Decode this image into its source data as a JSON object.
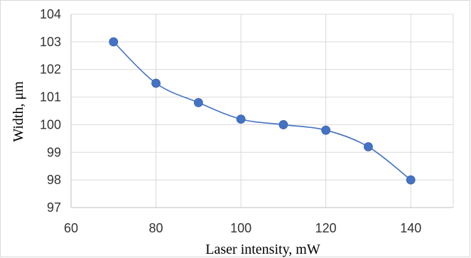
{
  "chart_data": {
    "type": "line",
    "xlabel": "Laser intensity, mW",
    "ylabel": "Width, μm",
    "xlim": [
      60,
      150
    ],
    "ylim": [
      97,
      104
    ],
    "x_ticks": [
      60,
      80,
      100,
      120,
      140
    ],
    "y_ticks": [
      97,
      98,
      99,
      100,
      101,
      102,
      103,
      104
    ],
    "grid": true,
    "legend": "none",
    "series": [
      {
        "x": [
          70,
          80,
          90,
          100,
          110,
          120,
          130,
          140
        ],
        "y": [
          103.0,
          101.5,
          100.8,
          100.2,
          100.0,
          99.8,
          99.2,
          98.0
        ],
        "color": "#4472c4",
        "smooth": true
      }
    ]
  }
}
